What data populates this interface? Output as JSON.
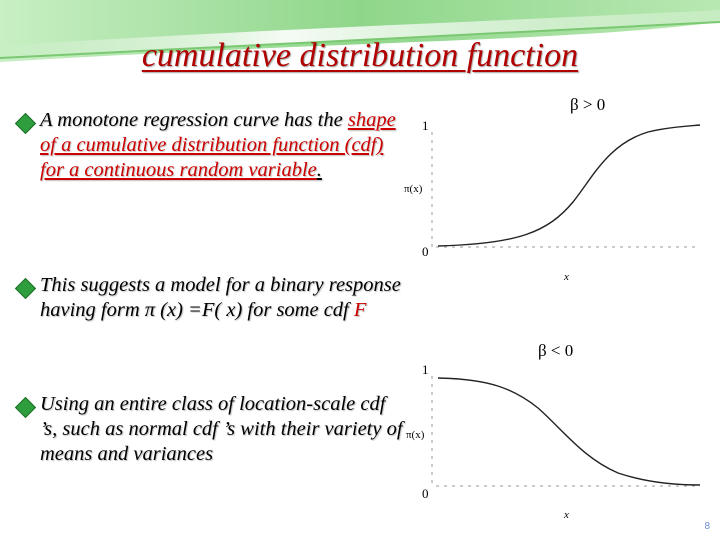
{
  "slide": {
    "title": "cumulative distribution function",
    "page_number": "8"
  },
  "bullets": [
    {
      "text_plain": "A monotone regression curve has the ",
      "text_red": "shape of a cumulative distribution function (cdf) for a continuous random variable",
      "text_end": "."
    },
    {
      "text_plain": "This suggests a model for a binary response having form  π (x) =F( x) for some cdf  ",
      "text_red": "F"
    },
    {
      "text_plain": "Using an entire class of location-scale cdf ’s, such as normal cdf ’s with their variety of means and variances"
    }
  ],
  "graphs": [
    {
      "caption": "β > 0",
      "y_axis_label": "π(x)",
      "x_axis_label": "x",
      "y_tick_top": "1",
      "y_tick_bottom": "0",
      "direction": "increasing"
    },
    {
      "caption": "β < 0",
      "y_axis_label": "π(x)",
      "x_axis_label": "x",
      "y_tick_top": "1",
      "y_tick_bottom": "0",
      "direction": "decreasing"
    }
  ],
  "colors": {
    "banner_green": "#8fd68a",
    "title_red": "#b00000",
    "bullet_green": "#2e9e3c",
    "emphasis_red": "#cc0000"
  }
}
